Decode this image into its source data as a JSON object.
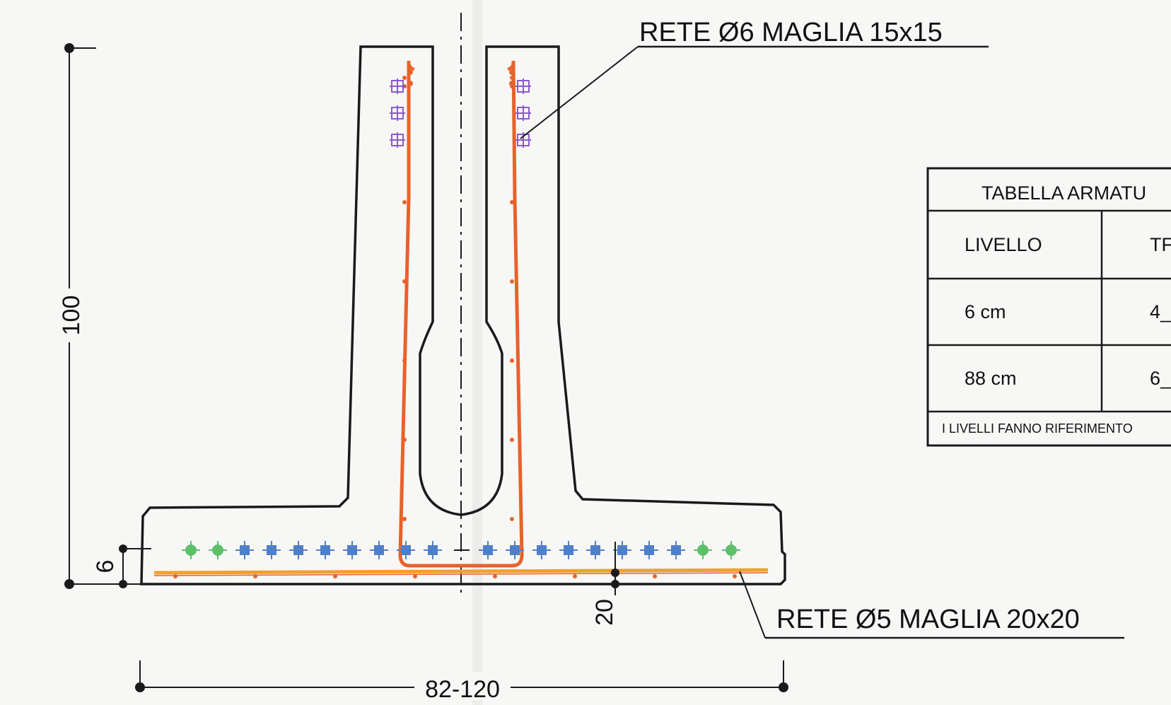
{
  "callouts": {
    "top_label": "RETE Ø6  MAGLIA 15x15",
    "bottom_label": "RETE Ø5  MAGLIA 20x20"
  },
  "dimensions": {
    "height": "100",
    "slab_thickness": "6",
    "bottom_cover": "20",
    "width": "82-120"
  },
  "table": {
    "title": "TABELLA ARMATU",
    "header_level": "LIVELLO",
    "header_second": "TF",
    "rows": [
      {
        "level": "6 cm",
        "value": "4_"
      },
      {
        "level": "88 cm",
        "value": "6_"
      }
    ],
    "footnote": "I LIVELLI FANNO RIFERIMENTO"
  },
  "colors": {
    "concrete_outline": "#1a1a1a",
    "rebar": "#e8622a",
    "mesh_bottom": "#f0a030",
    "bar_blue": "#4f7fc8",
    "bar_green": "#5cc06a",
    "bar_purple": "#8a5cc8"
  }
}
